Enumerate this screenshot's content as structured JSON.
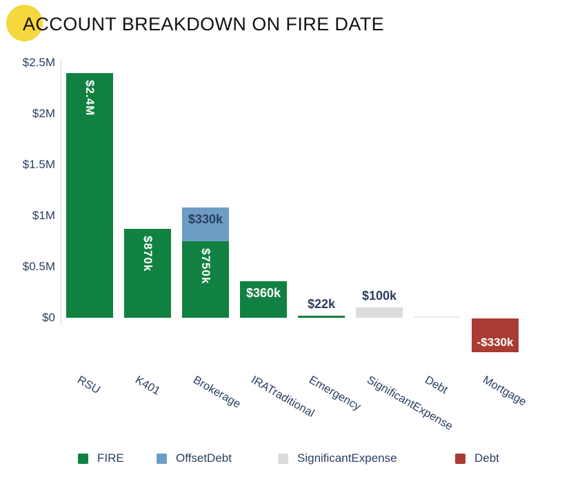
{
  "title": "ACCOUNT BREAKDOWN ON FIRE DATE",
  "decorations": {
    "title_badge_color": "#f6d73e"
  },
  "colors": {
    "fire": "#118141",
    "offset_debt": "#6d9dc5",
    "significant_expense": "#dcdcdc",
    "debt": "#a93b32",
    "zero_bar": "#ededed",
    "axis_text": "#2a3f5f",
    "axis_line": "#d9d9d9",
    "title_text": "#111111",
    "label_white": "#ffffff",
    "label_navy": "#2a3f5f"
  },
  "chart_data": {
    "type": "bar",
    "stacked": true,
    "title": "ACCOUNT BREAKDOWN ON FIRE DATE",
    "xlabel": "",
    "ylabel": "",
    "ylim": [
      -500000,
      2500000
    ],
    "grid": false,
    "legend_position": "bottom",
    "y_ticks": [
      {
        "label": "$2.5M",
        "value": 2500000
      },
      {
        "label": "$2M",
        "value": 2000000
      },
      {
        "label": "$1.5M",
        "value": 1500000
      },
      {
        "label": "$1M",
        "value": 1000000
      },
      {
        "label": "$0.5M",
        "value": 500000
      },
      {
        "label": "$0",
        "value": 0
      }
    ],
    "categories": [
      "RSU",
      "K401",
      "Brokerage",
      "IRATraditional",
      "Emergency",
      "SignificantExpense",
      "Debt",
      "Mortgage"
    ],
    "series": [
      {
        "name": "FIRE",
        "color_key": "fire",
        "values": [
          2400000,
          870000,
          750000,
          360000,
          22000,
          0,
          0,
          0
        ]
      },
      {
        "name": "OffsetDebt",
        "color_key": "offset_debt",
        "values": [
          0,
          0,
          330000,
          0,
          0,
          0,
          0,
          0
        ]
      },
      {
        "name": "SignificantExpense",
        "color_key": "significant_expense",
        "values": [
          0,
          0,
          0,
          0,
          0,
          100000,
          0,
          0
        ]
      },
      {
        "name": "Debt",
        "color_key": "debt",
        "values": [
          0,
          0,
          0,
          0,
          0,
          0,
          0,
          -330000
        ]
      }
    ],
    "segments": [
      {
        "cat": 0,
        "series": "FIRE",
        "value": 2400000,
        "base": 0,
        "label": "$2.4M",
        "label_pos": "inside-top-rotated",
        "label_color": "#ffffff"
      },
      {
        "cat": 1,
        "series": "FIRE",
        "value": 870000,
        "base": 0,
        "label": "$870k",
        "label_pos": "inside-top-rotated",
        "label_color": "#ffffff"
      },
      {
        "cat": 2,
        "series": "FIRE",
        "value": 750000,
        "base": 0,
        "label": "$750k",
        "label_pos": "inside-top-rotated",
        "label_color": "#ffffff"
      },
      {
        "cat": 2,
        "series": "OffsetDebt",
        "value": 330000,
        "base": 750000,
        "label": "$330k",
        "label_pos": "inside-top",
        "label_color": "#2a3f5f"
      },
      {
        "cat": 3,
        "series": "FIRE",
        "value": 360000,
        "base": 0,
        "label": "$360k",
        "label_pos": "inside-top",
        "label_color": "#ffffff"
      },
      {
        "cat": 4,
        "series": "FIRE",
        "value": 22000,
        "base": 0,
        "label": "$22k",
        "label_pos": "above",
        "label_color": "#2a3f5f"
      },
      {
        "cat": 5,
        "series": "SignificantExpense",
        "value": 100000,
        "base": 0,
        "label": "$100k",
        "label_pos": "above",
        "label_color": "#2a3f5f"
      },
      {
        "cat": 6,
        "series": "Debt",
        "value": 0,
        "base": 0,
        "label": "",
        "label_pos": "none",
        "label_color": ""
      },
      {
        "cat": 7,
        "series": "Debt",
        "value": -330000,
        "base": 0,
        "label": "-$330k",
        "label_pos": "inside-bottom",
        "label_color": "#ffffff"
      }
    ],
    "legend": [
      {
        "label": "FIRE",
        "color_key": "fire"
      },
      {
        "label": "OffsetDebt",
        "color_key": "offset_debt"
      },
      {
        "label": "SignificantExpense",
        "color_key": "significant_expense"
      },
      {
        "label": "Debt",
        "color_key": "debt"
      }
    ]
  },
  "layout_hints": {
    "legend_item_lefts": [
      113,
      227,
      403,
      660
    ]
  }
}
